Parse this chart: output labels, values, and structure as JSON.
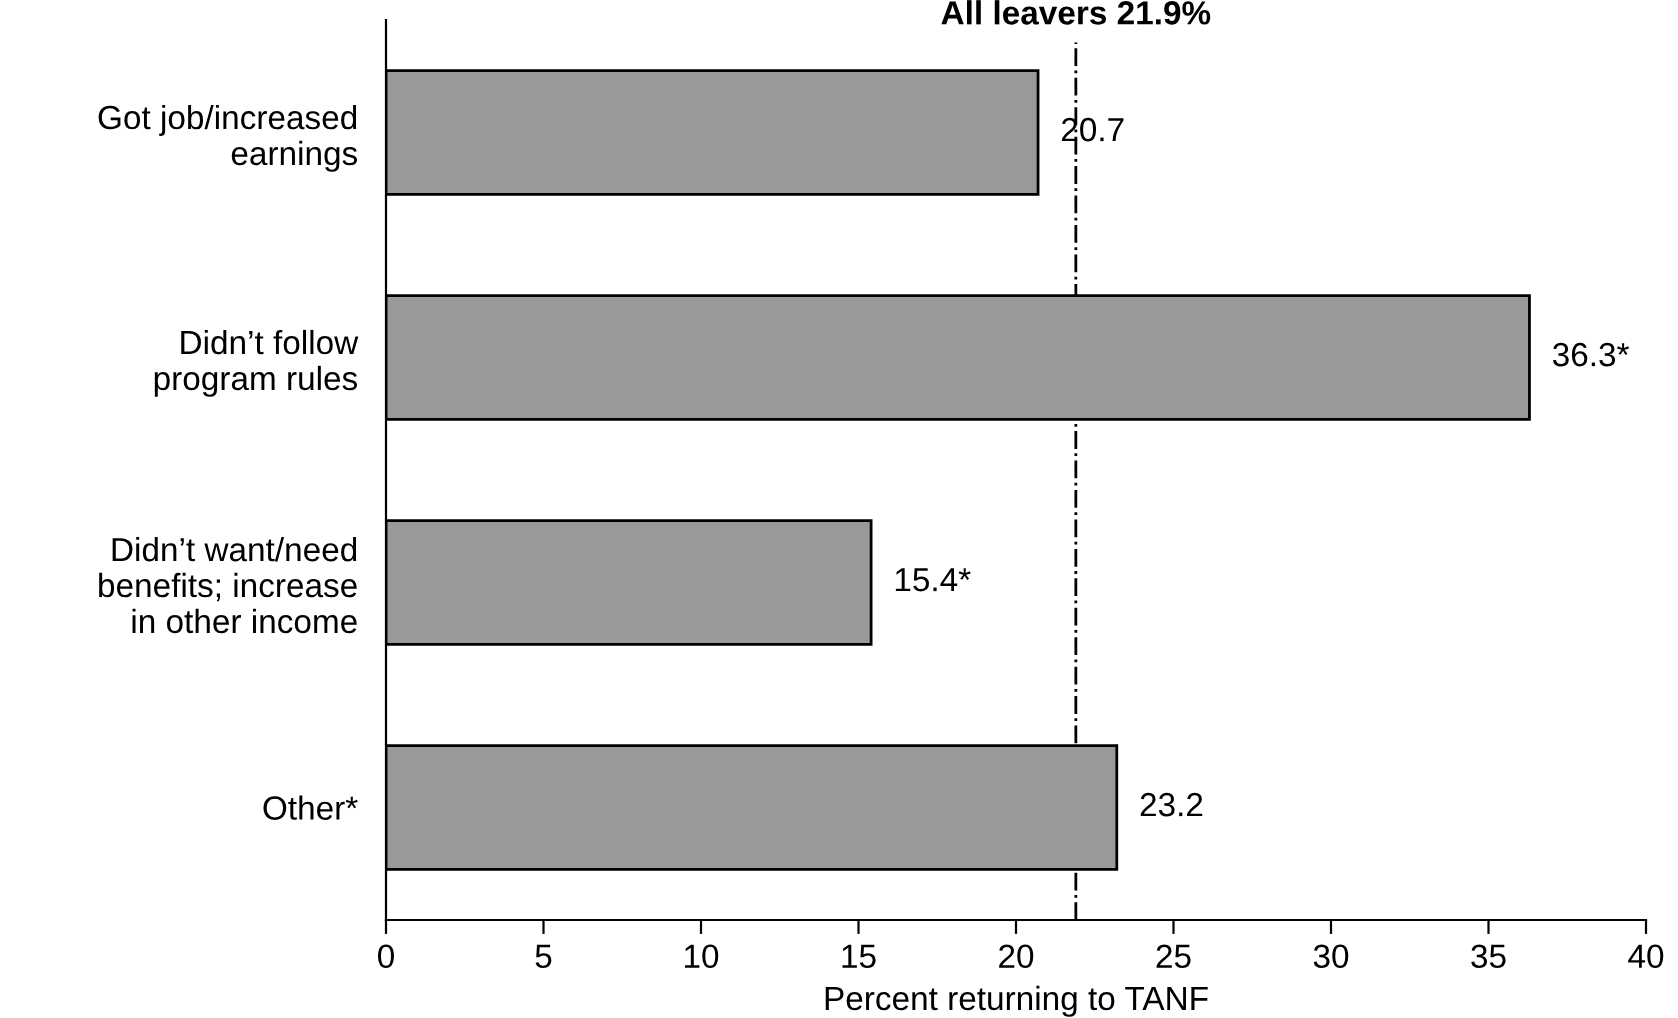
{
  "chart_data": {
    "type": "bar",
    "orientation": "horizontal",
    "categories": [
      "Got job/increased\nearnings",
      "Didn’t follow\nprogram rules",
      "Didn’t want/need\nbenefits; increase\nin other income",
      "Other*"
    ],
    "values": [
      20.7,
      36.3,
      15.4,
      23.2
    ],
    "value_labels": [
      "20.7",
      "36.3*",
      "15.4*",
      "23.2"
    ],
    "color": "#999999",
    "xlabel": "Percent returning to TANF",
    "xlim": [
      0,
      40
    ],
    "xticks": [
      0,
      5,
      10,
      15,
      20,
      25,
      30,
      35,
      40
    ],
    "ref_lines": [
      {
        "axis": "x",
        "value": 21.9,
        "label": "All leavers 21.9%",
        "color": "#000000",
        "line_style": "dashdot"
      }
    ],
    "grid": false,
    "legend": false
  }
}
